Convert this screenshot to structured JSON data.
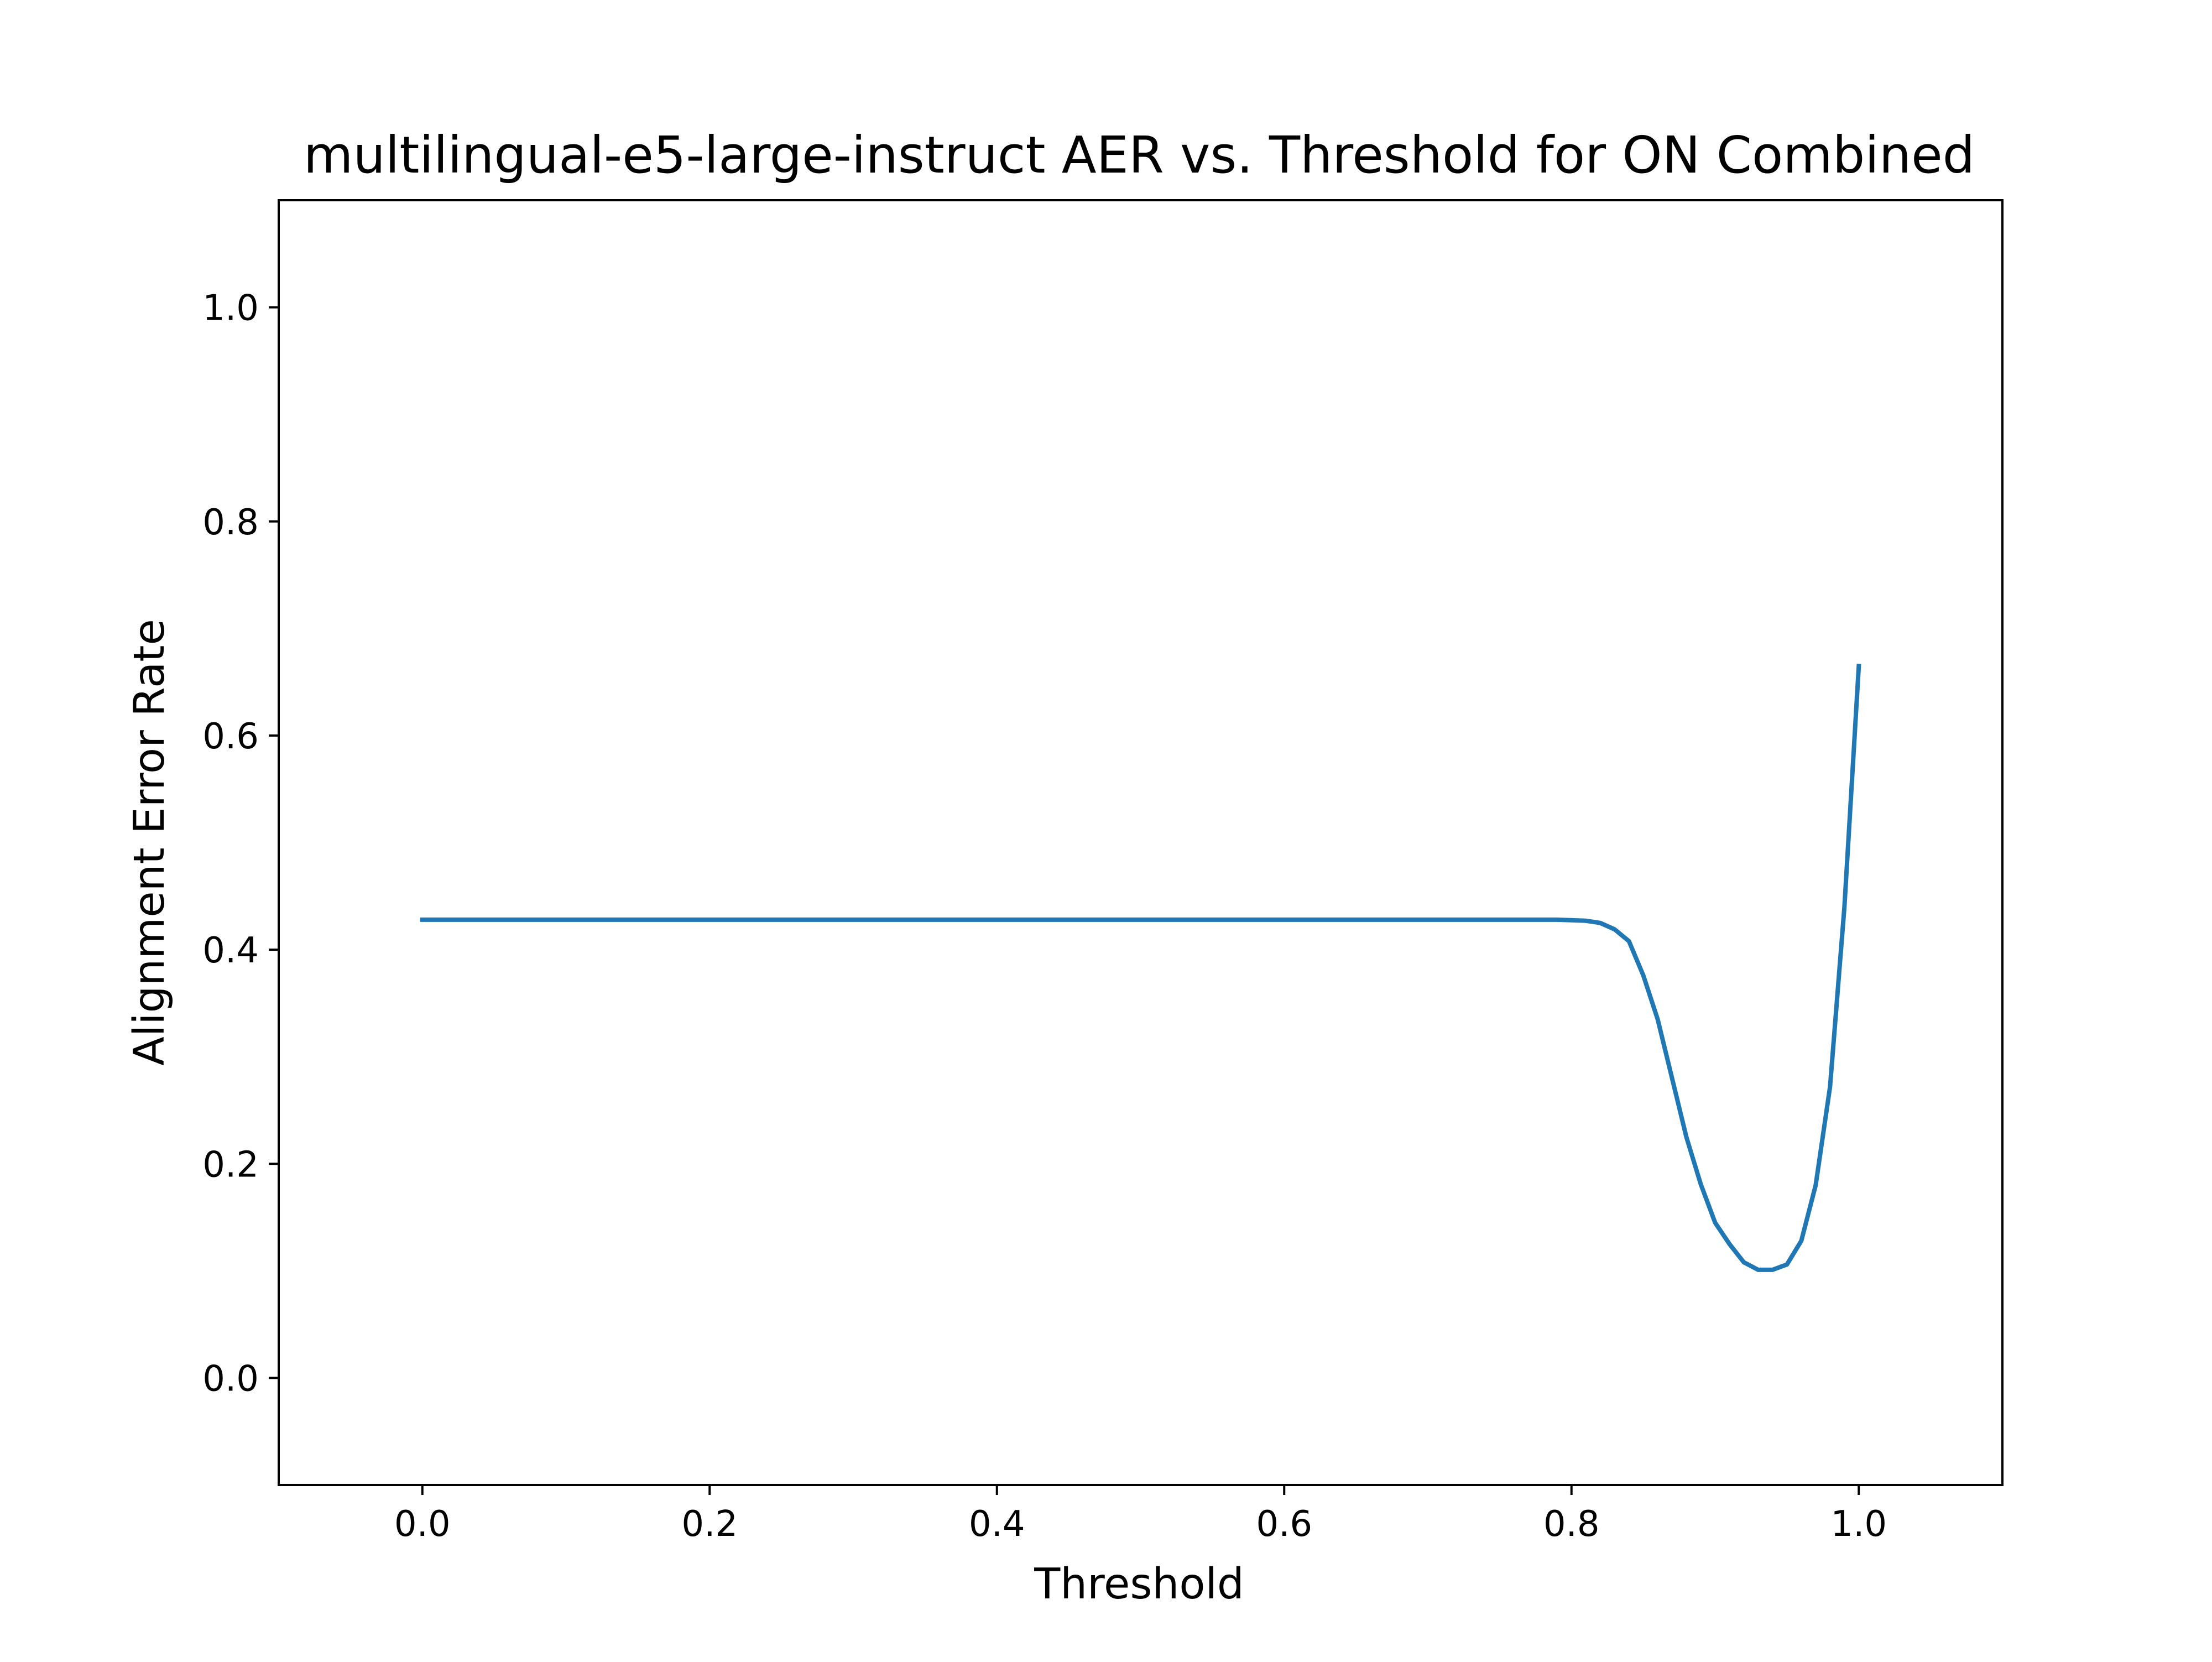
{
  "chart_data": {
    "type": "line",
    "title": "multilingual-e5-large-instruct AER vs. Threshold for ON Combined",
    "xlabel": "Threshold",
    "ylabel": "Alignment Error Rate",
    "xlim": [
      -0.1,
      1.1
    ],
    "ylim": [
      -0.1,
      1.1
    ],
    "xticks": [
      0.0,
      0.2,
      0.4,
      0.6,
      0.8,
      1.0
    ],
    "xtick_labels": [
      "0.0",
      "0.2",
      "0.4",
      "0.6",
      "0.8",
      "1.0"
    ],
    "yticks": [
      0.0,
      0.2,
      0.4,
      0.6,
      0.8,
      1.0
    ],
    "ytick_labels": [
      "0.0",
      "0.2",
      "0.4",
      "0.6",
      "0.8",
      "1.0"
    ],
    "grid": false,
    "series": [
      {
        "color": "#1f77b4",
        "x": [
          0.0,
          0.1,
          0.2,
          0.3,
          0.4,
          0.5,
          0.6,
          0.7,
          0.79,
          0.81,
          0.82,
          0.83,
          0.84,
          0.85,
          0.86,
          0.87,
          0.88,
          0.89,
          0.9,
          0.91,
          0.92,
          0.93,
          0.94,
          0.95,
          0.96,
          0.97,
          0.98,
          0.99,
          1.0
        ],
        "y": [
          0.428,
          0.428,
          0.428,
          0.428,
          0.428,
          0.428,
          0.428,
          0.428,
          0.428,
          0.427,
          0.425,
          0.419,
          0.408,
          0.376,
          0.335,
          0.28,
          0.225,
          0.181,
          0.145,
          0.125,
          0.108,
          0.101,
          0.101,
          0.106,
          0.128,
          0.18,
          0.272,
          0.44,
          0.665
        ]
      }
    ]
  }
}
